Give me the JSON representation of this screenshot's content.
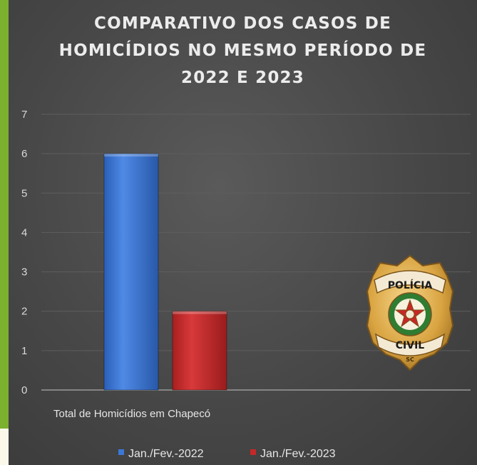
{
  "colors": {
    "background": "#474747",
    "frame": "#7cb02f",
    "series_2022": "#3a78d6",
    "series_2023": "#c62828",
    "gold": "#d9a441"
  },
  "badge": {
    "top_text": "POLÍCIA",
    "bottom_text": "CIVIL",
    "state": "SC",
    "icon": "police-badge-icon"
  },
  "chart_data": {
    "type": "bar",
    "title_lines": [
      "COMPARATIVO DOS CASOS DE",
      "HOMICÍDIOS NO MESMO PERÍODO DE",
      "2022 E 2023"
    ],
    "categories": [
      "Total de Homicídios em Chapecó"
    ],
    "series": [
      {
        "name": "Jan./Fev.-2022",
        "values": [
          6
        ],
        "color": "#3a78d6"
      },
      {
        "name": "Jan./Fev.-2023",
        "values": [
          2
        ],
        "color": "#c62828"
      }
    ],
    "ylim": [
      0,
      7
    ],
    "yticks": [
      0,
      1,
      2,
      3,
      4,
      5,
      6,
      7
    ],
    "grid": true,
    "legend_position": "bottom"
  }
}
